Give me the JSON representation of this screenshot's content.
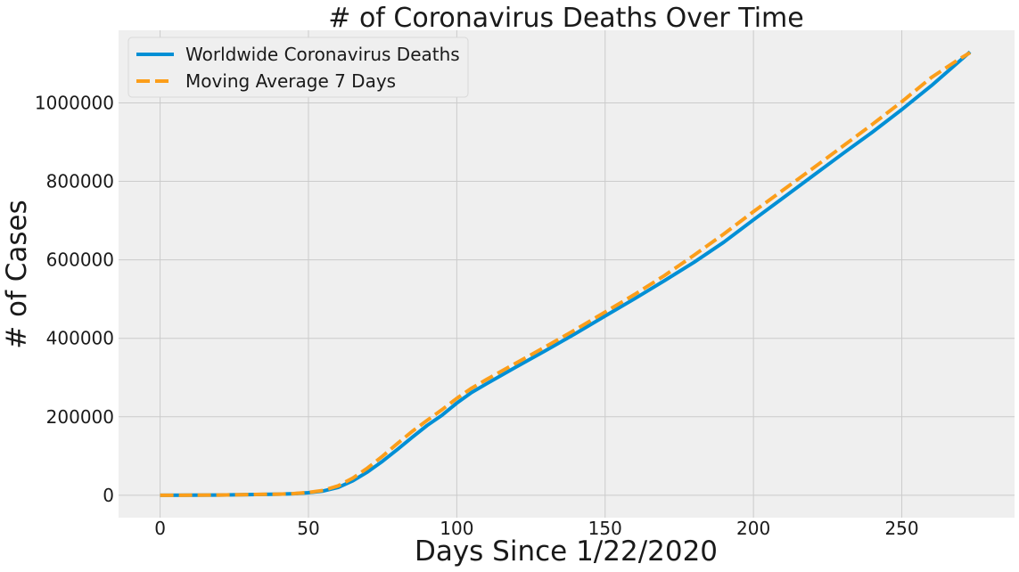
{
  "chart_data": {
    "type": "line",
    "title": "# of Coronavirus Deaths Over Time",
    "xlabel": "Days Since 1/22/2020",
    "ylabel": "# of Cases",
    "xlim": [
      -14,
      288
    ],
    "ylim": [
      -57000,
      1185000
    ],
    "xticks": [
      0,
      50,
      100,
      150,
      200,
      250
    ],
    "yticks": [
      0,
      200000,
      400000,
      600000,
      800000,
      1000000
    ],
    "grid": true,
    "legend_position": "upper-left",
    "background_color": "#efefef",
    "series": [
      {
        "name": "Worldwide Coronavirus Deaths",
        "color": "#008fd5",
        "style": "solid",
        "x": [
          0,
          10,
          20,
          30,
          40,
          45,
          50,
          55,
          60,
          65,
          70,
          75,
          80,
          85,
          90,
          95,
          100,
          105,
          110,
          120,
          130,
          140,
          150,
          160,
          170,
          180,
          190,
          200,
          210,
          220,
          230,
          240,
          250,
          260,
          273
        ],
        "y": [
          17,
          200,
          600,
          1800,
          3000,
          4000,
          6500,
          11000,
          20000,
          37000,
          60000,
          87000,
          117000,
          148000,
          178000,
          204000,
          235000,
          262000,
          284000,
          327000,
          369000,
          412000,
          457000,
          501000,
          547000,
          594000,
          645000,
          702000,
          758000,
          814000,
          870000,
          925000,
          983000,
          1044000,
          1130000
        ]
      },
      {
        "name": "Moving Average 7 Days",
        "color": "#fc9e1a",
        "style": "dashed",
        "x": [
          0,
          10,
          20,
          30,
          40,
          45,
          50,
          55,
          60,
          65,
          70,
          75,
          80,
          85,
          90,
          95,
          100,
          105,
          110,
          120,
          130,
          140,
          150,
          160,
          170,
          180,
          190,
          200,
          210,
          220,
          230,
          240,
          250,
          260,
          269,
          273
        ],
        "y": [
          17,
          200,
          600,
          1800,
          3000,
          4300,
          7200,
          12500,
          24000,
          44000,
          70000,
          100000,
          132000,
          163000,
          191000,
          218000,
          247000,
          273000,
          295000,
          337000,
          379000,
          422000,
          467000,
          512000,
          560000,
          612000,
          666000,
          723000,
          778000,
          833000,
          889000,
          945000,
          1003000,
          1065000,
          1110000,
          1128000
        ]
      }
    ]
  }
}
